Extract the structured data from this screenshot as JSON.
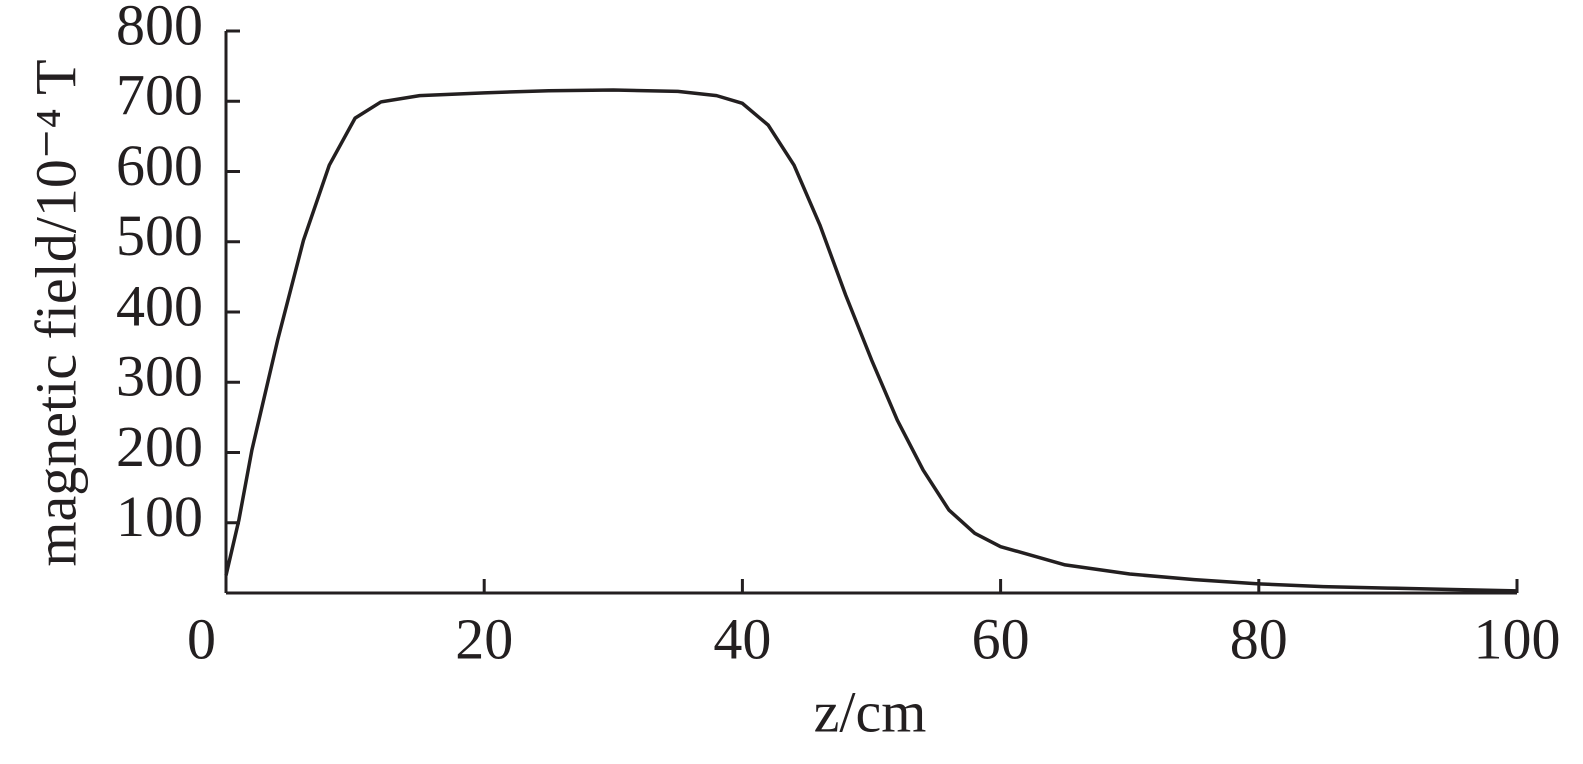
{
  "chart_data": {
    "type": "line",
    "x_label": "z/cm",
    "y_label": "magnetic field/10⁻⁴ T",
    "x": [
      0,
      1,
      2,
      4,
      6,
      8,
      10,
      12,
      15,
      20,
      25,
      30,
      35,
      38,
      40,
      42,
      44,
      46,
      48,
      50,
      52,
      54,
      56,
      58,
      60,
      65,
      70,
      75,
      80,
      85,
      90,
      95,
      100
    ],
    "series": [
      {
        "color": "#231f20",
        "values": [
          25,
          104,
          203,
          360,
          502,
          609,
          676,
          699,
          708,
          712,
          715,
          716,
          714,
          708,
          697,
          666,
          609,
          524,
          424,
          332,
          246,
          175,
          118,
          85,
          66,
          40,
          27,
          19,
          13,
          9,
          7,
          5,
          3
        ]
      }
    ],
    "xlim": [
      0,
      100
    ],
    "xticks": [
      0,
      20,
      40,
      60,
      80,
      100
    ],
    "ylim": [
      0,
      800
    ],
    "yticks": [
      100,
      200,
      300,
      400,
      500,
      600,
      700,
      800
    ],
    "grid": false
  }
}
